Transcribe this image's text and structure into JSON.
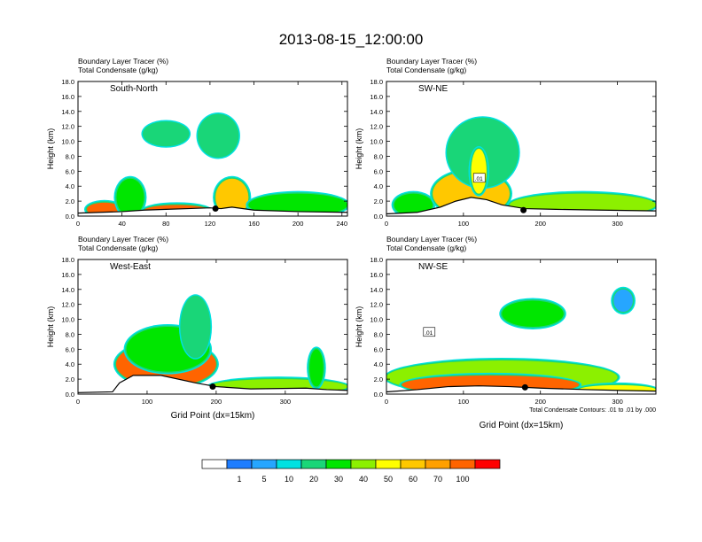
{
  "title": "2013-08-15_12:00:00",
  "chart_data": [
    {
      "type": "heatmap",
      "panel_label": "South-North",
      "header_lines": [
        "Boundary Layer Tracer   (%)",
        "Total Condensate   (g/kg)"
      ],
      "ylabel": "Height (km)",
      "xlabel": "",
      "xlim": [
        0,
        245
      ],
      "ylim": [
        0,
        18
      ],
      "xticks": [
        0,
        40,
        80,
        120,
        160,
        200,
        240
      ],
      "yticks": [
        "0.0",
        "2.0",
        "4.0",
        "6.0",
        "8.0",
        "10.0",
        "12.0",
        "14.0",
        "16.0",
        "18.0"
      ],
      "terrain": [
        [
          0,
          0.4
        ],
        [
          20,
          0.5
        ],
        [
          40,
          0.6
        ],
        [
          60,
          0.8
        ],
        [
          80,
          0.9
        ],
        [
          100,
          1.0
        ],
        [
          120,
          1.1
        ],
        [
          130,
          1.0
        ],
        [
          140,
          1.2
        ],
        [
          160,
          0.8
        ],
        [
          200,
          0.6
        ],
        [
          245,
          0.5
        ]
      ],
      "tracer_blobs": [
        {
          "x": [
            8,
            40
          ],
          "z": [
            0,
            1.8
          ],
          "level": 70
        },
        {
          "x": [
            35,
            60
          ],
          "z": [
            0,
            5
          ],
          "level": 30
        },
        {
          "x": [
            60,
            120
          ],
          "z": [
            0,
            1.5
          ],
          "level": 70
        },
        {
          "x": [
            125,
            155
          ],
          "z": [
            0,
            5
          ],
          "level": 60
        },
        {
          "x": [
            155,
            245
          ],
          "z": [
            0,
            3
          ],
          "level": 30
        },
        {
          "x": [
            60,
            100
          ],
          "z": [
            9.5,
            12.5
          ],
          "level": 20
        },
        {
          "x": [
            110,
            145
          ],
          "z": [
            8,
            13.5
          ],
          "level": 20
        }
      ],
      "marker": {
        "x": 125,
        "z": 1.0
      }
    },
    {
      "type": "heatmap",
      "panel_label": "SW-NE",
      "header_lines": [
        "Boundary Layer Tracer   (%)",
        "Total Condensate   (g/kg)"
      ],
      "ylabel": "Height (km)",
      "xlabel": "",
      "xlim": [
        0,
        350
      ],
      "ylim": [
        0,
        18
      ],
      "xticks": [
        0,
        100,
        200,
        300
      ],
      "yticks": [
        "0.0",
        "2.0",
        "4.0",
        "6.0",
        "8.0",
        "10.0",
        "12.0",
        "14.0",
        "16.0",
        "18.0"
      ],
      "contour_label": ".01",
      "terrain": [
        [
          0,
          0.3
        ],
        [
          40,
          0.5
        ],
        [
          70,
          1.2
        ],
        [
          90,
          2.0
        ],
        [
          110,
          2.5
        ],
        [
          130,
          2.2
        ],
        [
          150,
          1.5
        ],
        [
          180,
          1.0
        ],
        [
          220,
          0.9
        ],
        [
          280,
          0.8
        ],
        [
          350,
          0.7
        ]
      ],
      "tracer_blobs": [
        {
          "x": [
            10,
            60
          ],
          "z": [
            0,
            3
          ],
          "level": 30
        },
        {
          "x": [
            60,
            160
          ],
          "z": [
            0,
            6
          ],
          "level": 60
        },
        {
          "x": [
            80,
            170
          ],
          "z": [
            4,
            13
          ],
          "level": 20
        },
        {
          "x": [
            110,
            130
          ],
          "z": [
            3,
            9
          ],
          "level": 50
        },
        {
          "x": [
            160,
            350
          ],
          "z": [
            0,
            3
          ],
          "level": 40
        }
      ],
      "marker": {
        "x": 178,
        "z": 0.8
      }
    },
    {
      "type": "heatmap",
      "panel_label": "West-East",
      "header_lines": [
        "Boundary Layer Tracer   (%)",
        "Total Condensate   (g/kg)"
      ],
      "ylabel": "Height (km)",
      "xlabel": "Grid Point (dx=15km)",
      "xlim": [
        0,
        390
      ],
      "ylim": [
        0,
        18
      ],
      "xticks": [
        0,
        100,
        200,
        300
      ],
      "yticks": [
        "0.0",
        "2.0",
        "4.0",
        "6.0",
        "8.0",
        "10.0",
        "12.0",
        "14.0",
        "16.0",
        "18.0"
      ],
      "terrain": [
        [
          0,
          0.2
        ],
        [
          50,
          0.3
        ],
        [
          60,
          1.5
        ],
        [
          80,
          2.5
        ],
        [
          120,
          2.5
        ],
        [
          170,
          1.5
        ],
        [
          200,
          1.0
        ],
        [
          250,
          0.7
        ],
        [
          330,
          0.8
        ],
        [
          360,
          0.6
        ],
        [
          390,
          0.5
        ]
      ],
      "tracer_blobs": [
        {
          "x": [
            55,
            200
          ],
          "z": [
            1,
            7
          ],
          "level": 70
        },
        {
          "x": [
            70,
            190
          ],
          "z": [
            3,
            9
          ],
          "level": 30
        },
        {
          "x": [
            150,
            190
          ],
          "z": [
            5,
            13
          ],
          "level": 20
        },
        {
          "x": [
            190,
            390
          ],
          "z": [
            0,
            2
          ],
          "level": 40
        },
        {
          "x": [
            335,
            355
          ],
          "z": [
            1,
            6
          ],
          "level": 30
        }
      ],
      "marker": {
        "x": 195,
        "z": 1.0
      }
    },
    {
      "type": "heatmap",
      "panel_label": "NW-SE",
      "header_lines": [
        "Boundary Layer Tracer   (%)",
        "Total Condensate   (g/kg)"
      ],
      "ylabel": "Height (km)",
      "xlabel": "Grid Point (dx=15km)",
      "xlim": [
        0,
        350
      ],
      "ylim": [
        0,
        18
      ],
      "xticks": [
        0,
        100,
        200,
        300
      ],
      "yticks": [
        "0.0",
        "2.0",
        "4.0",
        "6.0",
        "8.0",
        "10.0",
        "12.0",
        "14.0",
        "16.0",
        "18.0"
      ],
      "contour_label": ".01",
      "footnote": "Total Condensate Contours: .01 to .01 by .000",
      "terrain": [
        [
          0,
          0.3
        ],
        [
          40,
          0.6
        ],
        [
          80,
          1.0
        ],
        [
          120,
          1.1
        ],
        [
          160,
          1.0
        ],
        [
          200,
          0.8
        ],
        [
          260,
          0.6
        ],
        [
          300,
          0.5
        ],
        [
          350,
          0.4
        ]
      ],
      "tracer_blobs": [
        {
          "x": [
            0,
            300
          ],
          "z": [
            0,
            4.5
          ],
          "level": 40
        },
        {
          "x": [
            20,
            250
          ],
          "z": [
            0,
            2.5
          ],
          "level": 70
        },
        {
          "x": [
            150,
            230
          ],
          "z": [
            9,
            12.5
          ],
          "level": 30
        },
        {
          "x": [
            295,
            320
          ],
          "z": [
            11,
            14
          ],
          "level": 5
        },
        {
          "x": [
            250,
            350
          ],
          "z": [
            0,
            1.2
          ],
          "level": 50
        }
      ],
      "marker": {
        "x": 180,
        "z": 0.9
      }
    }
  ],
  "colorbar": {
    "colors": [
      "#ffffff",
      "#1e7dff",
      "#26a6ff",
      "#00e1e1",
      "#19d678",
      "#00e600",
      "#8cf000",
      "#ffff00",
      "#ffc800",
      "#ffa000",
      "#ff6400",
      "#ff0000"
    ],
    "labels": [
      "1",
      "5",
      "10",
      "20",
      "30",
      "40",
      "50",
      "60",
      "70",
      "100"
    ]
  }
}
